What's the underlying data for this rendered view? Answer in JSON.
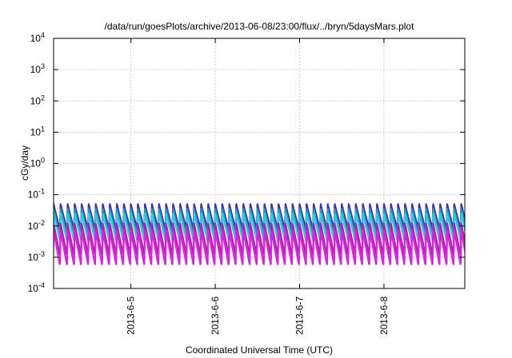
{
  "chart_data": {
    "type": "line",
    "title": "/data/run/goesPlots/archive/2013-06-08/23:00/flux/../bryn/5daysMars.plot",
    "xlabel": "Coordinated Universal Time (UTC)",
    "ylabel": "cGy/day",
    "y_scale": "log",
    "ylim": [
      0.0001,
      10000
    ],
    "y_ticks": [
      {
        "base": "10",
        "exp": "-4",
        "value": 0.0001
      },
      {
        "base": "10",
        "exp": "-3",
        "value": 0.001
      },
      {
        "base": "10",
        "exp": "-2",
        "value": 0.01
      },
      {
        "base": "10",
        "exp": "-1",
        "value": 0.1
      },
      {
        "base": "10",
        "exp": "0",
        "value": 1
      },
      {
        "base": "10",
        "exp": "1",
        "value": 10
      },
      {
        "base": "10",
        "exp": "2",
        "value": 100
      },
      {
        "base": "10",
        "exp": "3",
        "value": 1000
      },
      {
        "base": "10",
        "exp": "4",
        "value": 10000
      }
    ],
    "xlim": [
      "2013-06-04 02:00",
      "2013-06-08 23:00"
    ],
    "x_ticks": [
      {
        "label": "2013-6-5",
        "value": "2013-06-05 00:00"
      },
      {
        "label": "2013-6-6",
        "value": "2013-06-06 00:00"
      },
      {
        "label": "2013-6-7",
        "value": "2013-06-07 00:00"
      },
      {
        "label": "2013-6-8",
        "value": "2013-06-08 00:00"
      }
    ],
    "grid": true,
    "series_pattern": {
      "period_hours": 2,
      "first_peak": "2013-06-04 02:00",
      "last_peak": "2013-06-08 22:00"
    },
    "series": [
      {
        "color": "#d0203a",
        "peak": 0.05,
        "trough": 0.006
      },
      {
        "color": "#3030d8",
        "peak": 0.048,
        "trough": 0.008
      },
      {
        "color": "#2a9aa8",
        "peak": 0.035,
        "trough": 0.005
      },
      {
        "color": "#38c8d8",
        "peak": 0.025,
        "trough": 0.0035
      },
      {
        "color": "#b020b0",
        "peak": 0.012,
        "trough": 0.0012
      },
      {
        "color": "#e020e0",
        "peak": 0.007,
        "trough": 0.0006
      }
    ]
  }
}
